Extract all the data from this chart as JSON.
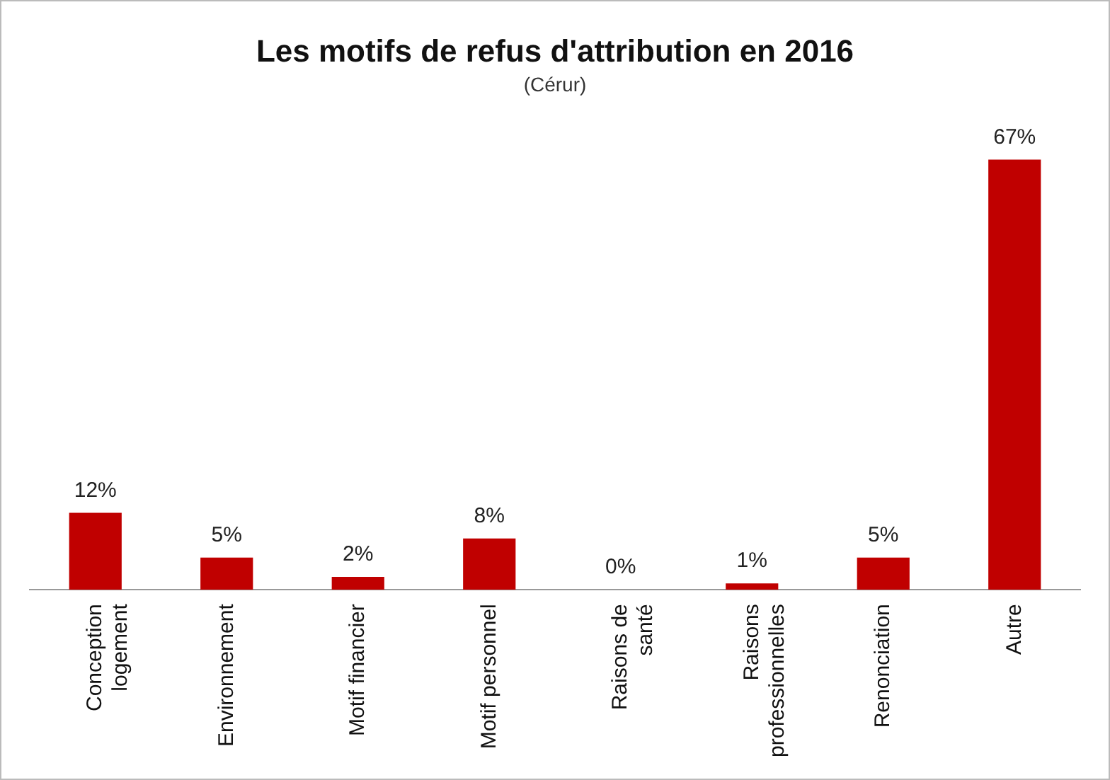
{
  "chart_data": {
    "type": "bar",
    "title": "Les motifs de refus d'attribution en 2016",
    "subtitle": "(Cérur)",
    "categories": [
      "Conception logement",
      "Environnement",
      "Motif financier",
      "Motif personnel",
      "Raisons de santé",
      "Raisons professionnelles",
      "Renonciation",
      "Autre"
    ],
    "values": [
      12,
      5,
      2,
      8,
      0,
      1,
      5,
      67
    ],
    "value_labels": [
      "12%",
      "5%",
      "2%",
      "8%",
      "0%",
      "1%",
      "5%",
      "67%"
    ],
    "color": "#c00000",
    "grid": false,
    "legend": false
  }
}
